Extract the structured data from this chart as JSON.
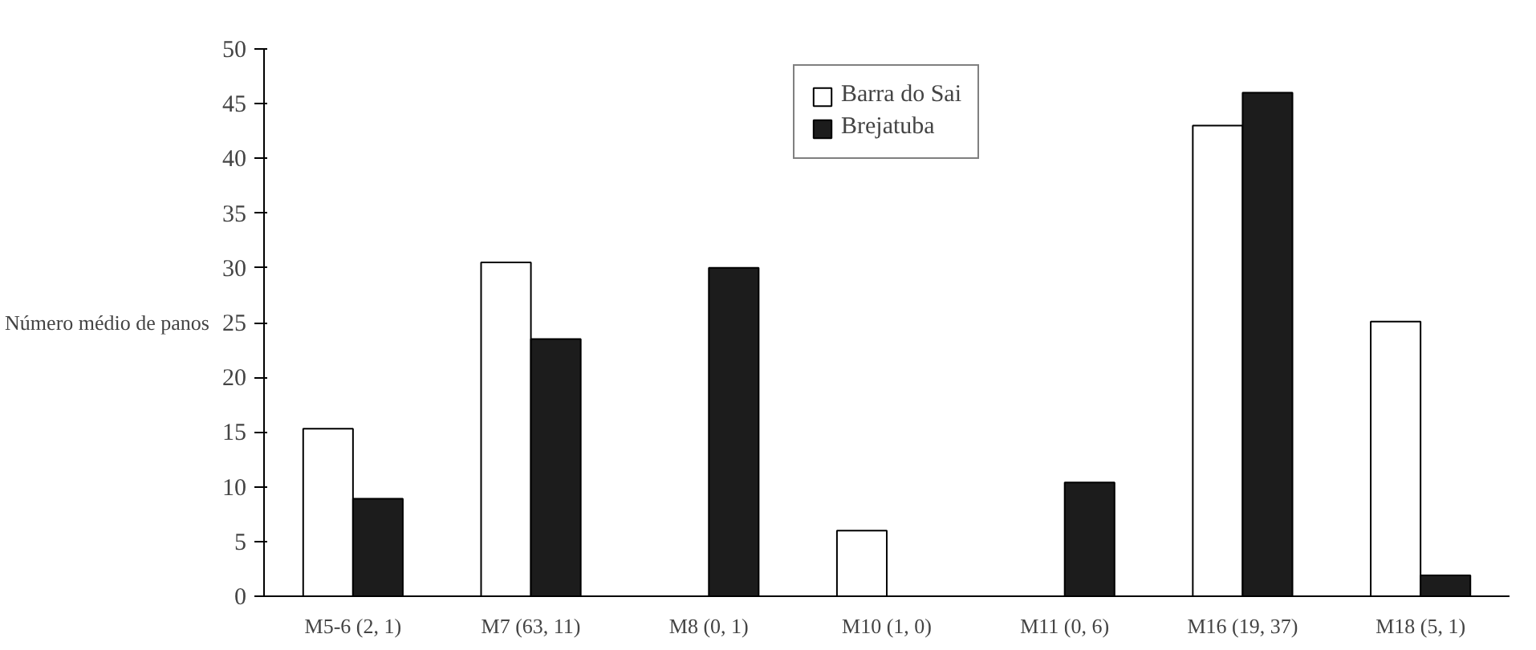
{
  "chart_data": {
    "type": "bar",
    "ylabel": "Número médio de panos",
    "categories": [
      "M5-6 (2, 1)",
      "M7 (63, 11)",
      "M8 (0, 1)",
      "M10 (1, 0)",
      "M11 (0, 6)",
      "M16 (19, 37)",
      "M18 (5, 1)"
    ],
    "series": [
      {
        "name": "Barra do Sai",
        "color": "#ffffff",
        "values": [
          15.3,
          30.5,
          0,
          6.0,
          0,
          43.0,
          25.1
        ]
      },
      {
        "name": "Brejatuba",
        "color": "#1c1c1c",
        "values": [
          8.9,
          23.5,
          30.0,
          0,
          10.4,
          46.0,
          1.9
        ]
      }
    ],
    "ylim": [
      0,
      50
    ],
    "yticks": [
      0,
      5,
      10,
      15,
      20,
      25,
      30,
      35,
      40,
      45,
      50
    ],
    "grid": false,
    "legend": "top"
  }
}
